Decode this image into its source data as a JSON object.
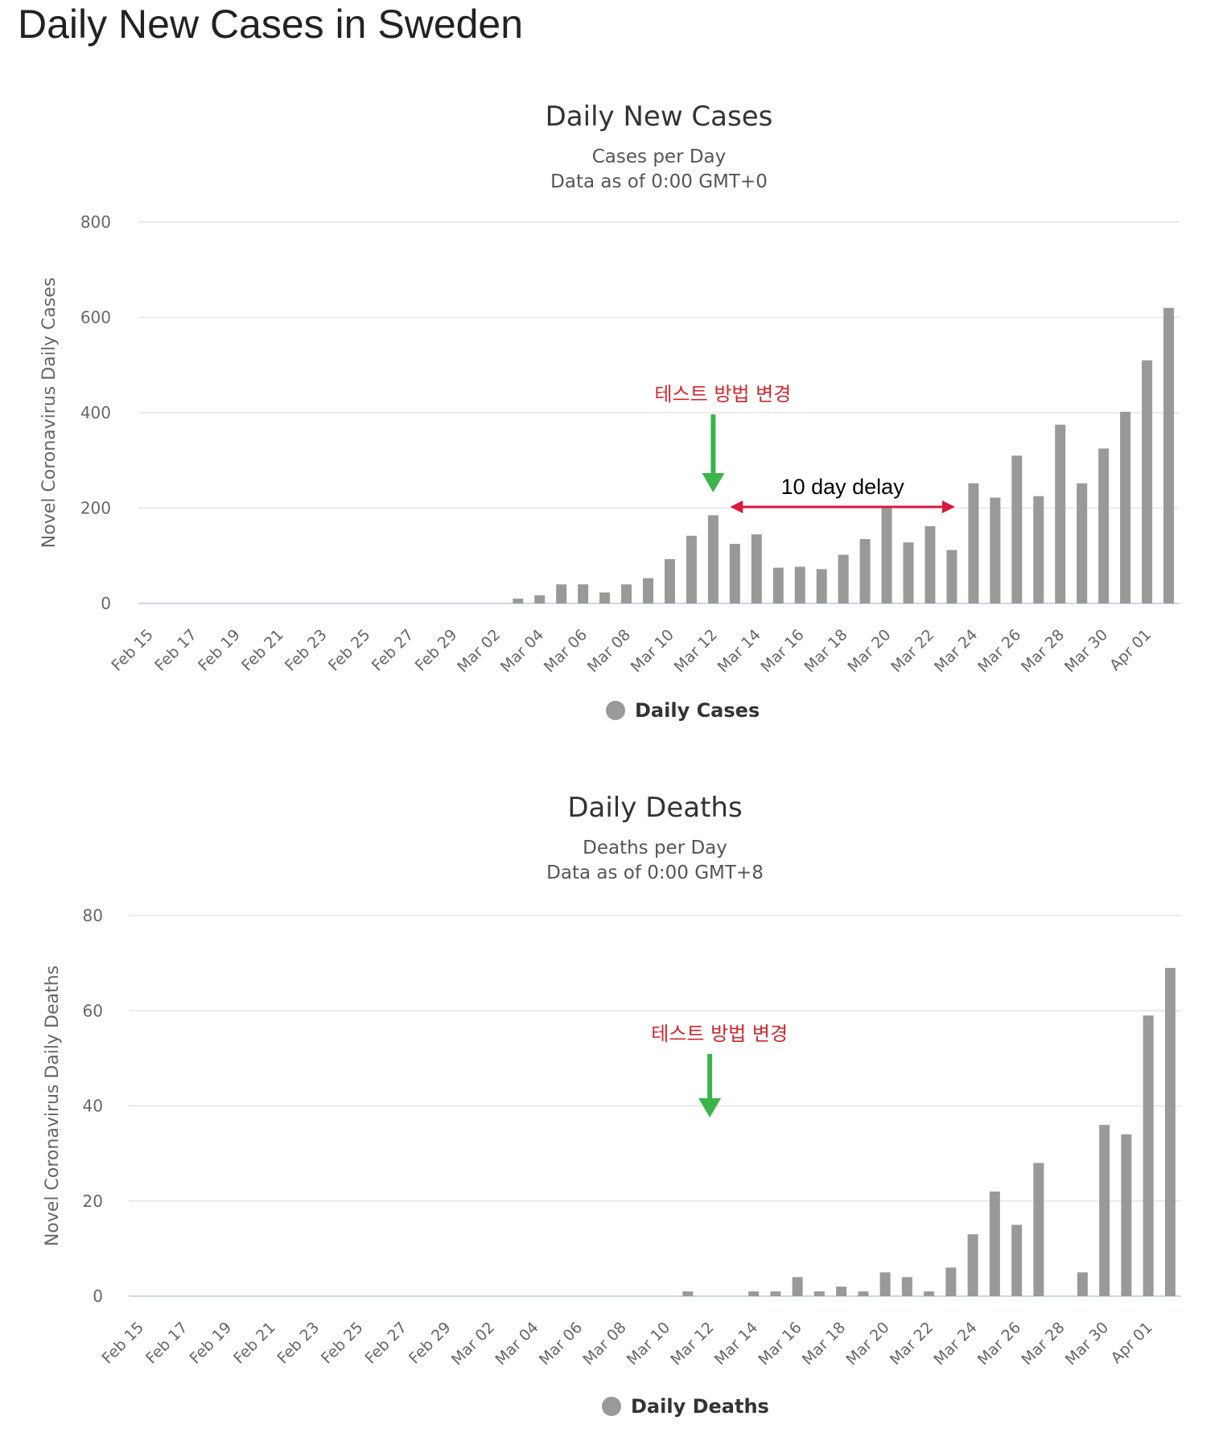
{
  "page_title": "Daily New Cases in Sweden",
  "colors": {
    "bar": "#999999",
    "grid": "#e6e6e6",
    "baseline": "#ccd6eb",
    "arrow_green": "#3bb54a",
    "arrow_red": "#d81b3c",
    "annotation_red": "#d0282e"
  },
  "chart_data": [
    {
      "type": "bar",
      "title": "Daily New Cases",
      "subtitle": "Cases per Day",
      "subtitle2": "Data as of 0:00 GMT+0",
      "xlabel": "",
      "ylabel": "Novel Coronavirus Daily Cases",
      "ylim": [
        0,
        800
      ],
      "yticks": [
        0,
        200,
        400,
        600,
        800
      ],
      "grid": true,
      "legend": {
        "position": "bottom",
        "label": "Daily Cases"
      },
      "x_tick_labels": [
        "Feb 15",
        "Feb 17",
        "Feb 19",
        "Feb 21",
        "Feb 23",
        "Feb 25",
        "Feb 27",
        "Feb 29",
        "Mar 02",
        "Mar 04",
        "Mar 06",
        "Mar 08",
        "Mar 10",
        "Mar 12",
        "Mar 14",
        "Mar 16",
        "Mar 18",
        "Mar 20",
        "Mar 22",
        "Mar 24",
        "Mar 26",
        "Mar 28",
        "Mar 30",
        "Apr 01"
      ],
      "categories": [
        "Feb 15",
        "Feb 16",
        "Feb 17",
        "Feb 18",
        "Feb 19",
        "Feb 20",
        "Feb 21",
        "Feb 22",
        "Feb 23",
        "Feb 24",
        "Feb 25",
        "Feb 26",
        "Feb 27",
        "Feb 28",
        "Feb 29",
        "Mar 01",
        "Mar 02",
        "Mar 03",
        "Mar 04",
        "Mar 05",
        "Mar 06",
        "Mar 07",
        "Mar 08",
        "Mar 09",
        "Mar 10",
        "Mar 11",
        "Mar 12",
        "Mar 13",
        "Mar 14",
        "Mar 15",
        "Mar 16",
        "Mar 17",
        "Mar 18",
        "Mar 19",
        "Mar 20",
        "Mar 21",
        "Mar 22",
        "Mar 23",
        "Mar 24",
        "Mar 25",
        "Mar 26",
        "Mar 27",
        "Mar 28",
        "Mar 29",
        "Mar 30",
        "Mar 31",
        "Apr 01",
        "Apr 02"
      ],
      "series": [
        {
          "name": "Daily Cases",
          "values": [
            0,
            0,
            0,
            0,
            0,
            0,
            0,
            0,
            0,
            0,
            0,
            0,
            0,
            0,
            0,
            0,
            0,
            10,
            17,
            40,
            40,
            23,
            40,
            53,
            93,
            142,
            185,
            125,
            145,
            75,
            77,
            72,
            102,
            135,
            200,
            128,
            162,
            112,
            252,
            222,
            310,
            225,
            375,
            252,
            325,
            402,
            510,
            620
          ]
        }
      ],
      "annotations": {
        "method_change": {
          "text": "테스트 방법 변경",
          "at": "Mar 12"
        },
        "delay": {
          "text": "10 day delay",
          "from": "Mar 13",
          "to": "Mar 23"
        }
      }
    },
    {
      "type": "bar",
      "title": "Daily Deaths",
      "subtitle": "Deaths per Day",
      "subtitle2": "Data as of 0:00 GMT+8",
      "xlabel": "",
      "ylabel": "Novel Coronavirus Daily Deaths",
      "ylim": [
        0,
        80
      ],
      "yticks": [
        0,
        20,
        40,
        60,
        80
      ],
      "grid": true,
      "legend": {
        "position": "bottom",
        "label": "Daily Deaths"
      },
      "x_tick_labels": [
        "Feb 15",
        "Feb 17",
        "Feb 19",
        "Feb 21",
        "Feb 23",
        "Feb 25",
        "Feb 27",
        "Feb 29",
        "Mar 02",
        "Mar 04",
        "Mar 06",
        "Mar 08",
        "Mar 10",
        "Mar 12",
        "Mar 14",
        "Mar 16",
        "Mar 18",
        "Mar 20",
        "Mar 22",
        "Mar 24",
        "Mar 26",
        "Mar 28",
        "Mar 30",
        "Apr 01"
      ],
      "categories": [
        "Feb 15",
        "Feb 16",
        "Feb 17",
        "Feb 18",
        "Feb 19",
        "Feb 20",
        "Feb 21",
        "Feb 22",
        "Feb 23",
        "Feb 24",
        "Feb 25",
        "Feb 26",
        "Feb 27",
        "Feb 28",
        "Feb 29",
        "Mar 01",
        "Mar 02",
        "Mar 03",
        "Mar 04",
        "Mar 05",
        "Mar 06",
        "Mar 07",
        "Mar 08",
        "Mar 09",
        "Mar 10",
        "Mar 11",
        "Mar 12",
        "Mar 13",
        "Mar 14",
        "Mar 15",
        "Mar 16",
        "Mar 17",
        "Mar 18",
        "Mar 19",
        "Mar 20",
        "Mar 21",
        "Mar 22",
        "Mar 23",
        "Mar 24",
        "Mar 25",
        "Mar 26",
        "Mar 27",
        "Mar 28",
        "Mar 29",
        "Mar 30",
        "Mar 31",
        "Apr 01",
        "Apr 02"
      ],
      "series": [
        {
          "name": "Daily Deaths",
          "values": [
            0,
            0,
            0,
            0,
            0,
            0,
            0,
            0,
            0,
            0,
            0,
            0,
            0,
            0,
            0,
            0,
            0,
            0,
            0,
            0,
            0,
            0,
            0,
            0,
            0,
            1,
            0,
            0,
            1,
            1,
            4,
            1,
            2,
            1,
            5,
            4,
            1,
            6,
            13,
            22,
            15,
            28,
            0,
            5,
            36,
            34,
            59,
            69
          ]
        }
      ],
      "annotations": {
        "method_change": {
          "text": "테스트 방법 변경",
          "at": "Mar 12"
        }
      }
    }
  ]
}
